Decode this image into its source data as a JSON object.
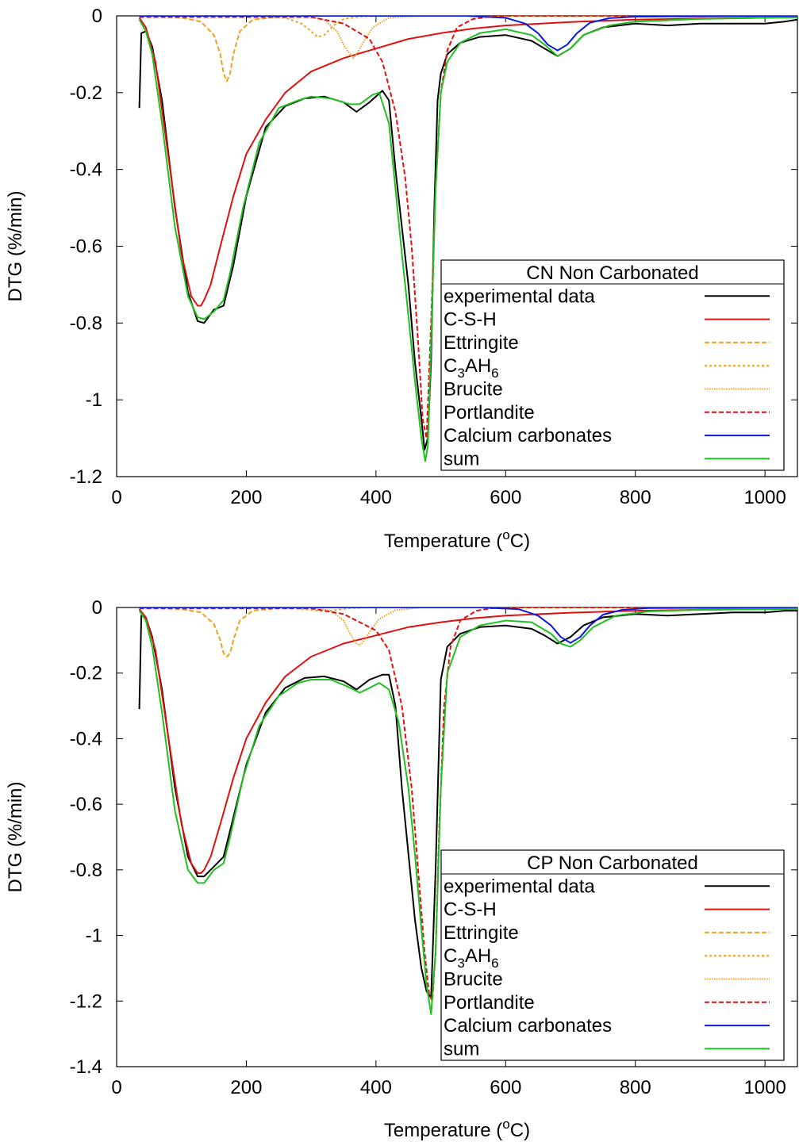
{
  "chart_data": [
    {
      "type": "line",
      "legend_title": "CN Non Carbonated",
      "xlabel": {
        "base": "Temperature (",
        "sup": "o",
        "tail": "C)"
      },
      "ylabel": "DTG (%/min)",
      "xlim": [
        0,
        1050
      ],
      "ylim": [
        -1.2,
        0
      ],
      "x_ticks": [
        0,
        200,
        400,
        600,
        800,
        1000
      ],
      "y_ticks": [
        0,
        -0.2,
        -0.4,
        -0.6,
        -0.8,
        -1,
        -1.2
      ],
      "x_tick_labels": [
        "0",
        "200",
        "400",
        "600",
        "800",
        "1000"
      ],
      "y_tick_labels": [
        "0",
        "-0.2",
        "-0.4",
        "-0.6",
        "-0.8",
        "-1",
        "-1.2"
      ],
      "legend_position": "bottom-right",
      "series": [
        {
          "name": "experimental data",
          "color": "#000000",
          "dash": "solid",
          "x": [
            35,
            38,
            45,
            55,
            70,
            90,
            110,
            125,
            135,
            150,
            165,
            180,
            200,
            230,
            260,
            290,
            320,
            350,
            370,
            390,
            410,
            420,
            430,
            440,
            450,
            460,
            470,
            475,
            480,
            485,
            490,
            495,
            500,
            510,
            530,
            560,
            600,
            640,
            660,
            680,
            700,
            720,
            750,
            800,
            850,
            900,
            950,
            1000,
            1030,
            1050
          ],
          "y": [
            -0.24,
            -0.045,
            -0.04,
            -0.08,
            -0.22,
            -0.5,
            -0.72,
            -0.795,
            -0.8,
            -0.765,
            -0.755,
            -0.65,
            -0.47,
            -0.29,
            -0.235,
            -0.215,
            -0.21,
            -0.225,
            -0.25,
            -0.225,
            -0.195,
            -0.22,
            -0.4,
            -0.55,
            -0.7,
            -0.9,
            -1.05,
            -1.13,
            -1.1,
            -0.9,
            -0.5,
            -0.22,
            -0.15,
            -0.1,
            -0.07,
            -0.055,
            -0.05,
            -0.065,
            -0.085,
            -0.105,
            -0.085,
            -0.05,
            -0.03,
            -0.02,
            -0.025,
            -0.02,
            -0.02,
            -0.02,
            -0.015,
            -0.01
          ]
        },
        {
          "name": "C-S-H",
          "color": "#e01010",
          "dash": "solid",
          "x": [
            35,
            45,
            60,
            80,
            100,
            115,
            125,
            130,
            135,
            145,
            160,
            180,
            200,
            230,
            260,
            300,
            350,
            400,
            450,
            500,
            550,
            600,
            700,
            800,
            900,
            1000,
            1050
          ],
          "y": [
            -0.005,
            -0.03,
            -0.12,
            -0.37,
            -0.62,
            -0.73,
            -0.755,
            -0.755,
            -0.74,
            -0.7,
            -0.6,
            -0.47,
            -0.36,
            -0.27,
            -0.2,
            -0.145,
            -0.11,
            -0.085,
            -0.06,
            -0.045,
            -0.033,
            -0.025,
            -0.016,
            -0.01,
            -0.007,
            -0.005,
            -0.004
          ]
        },
        {
          "name": "Ettringite",
          "color": "#f0a020",
          "dash": "6,3",
          "x": [
            35,
            100,
            130,
            150,
            160,
            165,
            170,
            175,
            180,
            190,
            210,
            250,
            300,
            400,
            1050
          ],
          "y": [
            0,
            -0.005,
            -0.015,
            -0.05,
            -0.1,
            -0.15,
            -0.17,
            -0.15,
            -0.1,
            -0.04,
            -0.01,
            -0.002,
            0,
            0,
            0
          ]
        },
        {
          "name": "C3AH6",
          "name_sub": "3",
          "name_tail": "AH",
          "name_sub2": "6",
          "name_head": "C",
          "color": "#f0a020",
          "dash": "3,3",
          "x": [
            35,
            220,
            260,
            285,
            300,
            310,
            320,
            335,
            350,
            380,
            420,
            1050
          ],
          "y": [
            0,
            0,
            -0.005,
            -0.02,
            -0.04,
            -0.055,
            -0.05,
            -0.025,
            -0.008,
            -0.001,
            0,
            0
          ]
        },
        {
          "name": "Brucite",
          "color": "#f0a020",
          "dash": "1.5,1.5",
          "x": [
            35,
            290,
            320,
            340,
            350,
            360,
            365,
            370,
            380,
            395,
            420,
            460,
            1050
          ],
          "y": [
            0,
            0,
            -0.01,
            -0.04,
            -0.075,
            -0.1,
            -0.11,
            -0.1,
            -0.07,
            -0.03,
            -0.005,
            0,
            0
          ]
        },
        {
          "name": "Portlandite",
          "color": "#e01010",
          "dash": "6,3",
          "x": [
            35,
            300,
            350,
            390,
            410,
            430,
            445,
            455,
            465,
            472,
            478,
            485,
            492,
            500,
            510,
            525,
            550,
            575,
            600,
            700,
            1050
          ],
          "y": [
            -0.003,
            -0.003,
            -0.02,
            -0.06,
            -0.12,
            -0.25,
            -0.42,
            -0.6,
            -0.85,
            -1.05,
            -1.1,
            -0.8,
            -0.45,
            -0.2,
            -0.09,
            -0.03,
            -0.008,
            -0.002,
            0,
            0,
            0
          ]
        },
        {
          "name": "Calcium carbonates",
          "color": "#0a1ae0",
          "dash": "solid",
          "x": [
            35,
            540,
            600,
            630,
            650,
            665,
            680,
            695,
            710,
            730,
            760,
            800,
            1050
          ],
          "y": [
            0,
            0,
            -0.005,
            -0.02,
            -0.045,
            -0.075,
            -0.09,
            -0.075,
            -0.045,
            -0.018,
            -0.006,
            -0.002,
            0
          ]
        },
        {
          "name": "sum",
          "color": "#20c020",
          "dash": "solid",
          "x": [
            35,
            45,
            55,
            70,
            90,
            110,
            125,
            135,
            150,
            165,
            175,
            195,
            220,
            250,
            280,
            300,
            330,
            360,
            375,
            395,
            405,
            420,
            430,
            440,
            450,
            460,
            470,
            476,
            480,
            485,
            492,
            500,
            510,
            530,
            560,
            600,
            640,
            660,
            680,
            700,
            720,
            760,
            800,
            900,
            1000,
            1050
          ],
          "y": [
            -0.01,
            -0.04,
            -0.1,
            -0.28,
            -0.55,
            -0.73,
            -0.785,
            -0.79,
            -0.77,
            -0.74,
            -0.67,
            -0.5,
            -0.33,
            -0.24,
            -0.22,
            -0.21,
            -0.215,
            -0.23,
            -0.23,
            -0.205,
            -0.2,
            -0.28,
            -0.45,
            -0.62,
            -0.78,
            -0.95,
            -1.1,
            -1.16,
            -1.12,
            -0.85,
            -0.45,
            -0.2,
            -0.12,
            -0.07,
            -0.045,
            -0.035,
            -0.05,
            -0.075,
            -0.105,
            -0.085,
            -0.05,
            -0.025,
            -0.015,
            -0.008,
            -0.005,
            -0.004
          ]
        }
      ]
    },
    {
      "type": "line",
      "legend_title": "CP Non Carbonated",
      "xlabel": {
        "base": "Temperature (",
        "sup": "o",
        "tail": "C)"
      },
      "ylabel": "DTG (%/min)",
      "xlim": [
        0,
        1050
      ],
      "ylim": [
        -1.4,
        0
      ],
      "x_ticks": [
        0,
        200,
        400,
        600,
        800,
        1000
      ],
      "y_ticks": [
        0,
        -0.2,
        -0.4,
        -0.6,
        -0.8,
        -1,
        -1.2,
        -1.4
      ],
      "x_tick_labels": [
        "0",
        "200",
        "400",
        "600",
        "800",
        "1000"
      ],
      "y_tick_labels": [
        "0",
        "-0.2",
        "-0.4",
        "-0.6",
        "-0.8",
        "-1",
        "-1.2",
        "-1.4"
      ],
      "legend_position": "bottom-right",
      "series": [
        {
          "name": "experimental data",
          "color": "#000000",
          "dash": "solid",
          "x": [
            35,
            38,
            45,
            55,
            70,
            90,
            110,
            125,
            135,
            150,
            165,
            180,
            200,
            230,
            260,
            290,
            320,
            350,
            370,
            390,
            410,
            420,
            430,
            440,
            450,
            460,
            470,
            478,
            485,
            492,
            500,
            510,
            530,
            560,
            600,
            640,
            660,
            680,
            700,
            720,
            750,
            800,
            850,
            900,
            950,
            1000,
            1030,
            1050
          ],
          "y": [
            -0.31,
            -0.025,
            -0.03,
            -0.09,
            -0.25,
            -0.55,
            -0.76,
            -0.82,
            -0.82,
            -0.79,
            -0.76,
            -0.64,
            -0.48,
            -0.32,
            -0.245,
            -0.215,
            -0.21,
            -0.225,
            -0.25,
            -0.22,
            -0.205,
            -0.205,
            -0.3,
            -0.55,
            -0.75,
            -0.95,
            -1.1,
            -1.17,
            -1.19,
            -0.8,
            -0.22,
            -0.12,
            -0.08,
            -0.06,
            -0.055,
            -0.065,
            -0.085,
            -0.11,
            -0.09,
            -0.055,
            -0.03,
            -0.02,
            -0.025,
            -0.02,
            -0.015,
            -0.015,
            -0.01,
            -0.01
          ]
        },
        {
          "name": "C-S-H",
          "color": "#e01010",
          "dash": "solid",
          "x": [
            35,
            45,
            60,
            80,
            100,
            115,
            125,
            130,
            135,
            145,
            160,
            180,
            200,
            230,
            260,
            300,
            350,
            400,
            450,
            500,
            550,
            600,
            700,
            800,
            900,
            1000,
            1050
          ],
          "y": [
            -0.005,
            -0.03,
            -0.13,
            -0.4,
            -0.66,
            -0.78,
            -0.81,
            -0.81,
            -0.8,
            -0.76,
            -0.66,
            -0.52,
            -0.4,
            -0.29,
            -0.21,
            -0.15,
            -0.11,
            -0.085,
            -0.06,
            -0.045,
            -0.033,
            -0.025,
            -0.016,
            -0.01,
            -0.007,
            -0.005,
            -0.004
          ]
        },
        {
          "name": "Ettringite",
          "color": "#f0a020",
          "dash": "6,3",
          "x": [
            35,
            100,
            130,
            150,
            160,
            165,
            170,
            175,
            180,
            190,
            210,
            250,
            300,
            400,
            1050
          ],
          "y": [
            0,
            -0.005,
            -0.015,
            -0.05,
            -0.1,
            -0.14,
            -0.15,
            -0.14,
            -0.1,
            -0.04,
            -0.01,
            -0.002,
            0,
            0,
            0
          ]
        },
        {
          "name": "C3AH6",
          "name_sub": "3",
          "name_tail": "AH",
          "name_sub2": "6",
          "name_head": "C",
          "color": "#f0a020",
          "dash": "3,3",
          "x": [
            35,
            230,
            270,
            295,
            310,
            320,
            330,
            345,
            360,
            390,
            430,
            1050
          ],
          "y": [
            0,
            0,
            -0.002,
            -0.006,
            -0.01,
            -0.012,
            -0.01,
            -0.006,
            -0.002,
            0,
            0,
            0
          ]
        },
        {
          "name": "Brucite",
          "color": "#f0a020",
          "dash": "1.5,1.5",
          "x": [
            35,
            300,
            330,
            350,
            360,
            370,
            375,
            380,
            390,
            405,
            430,
            470,
            1050
          ],
          "y": [
            0,
            0,
            -0.01,
            -0.04,
            -0.08,
            -0.11,
            -0.115,
            -0.105,
            -0.075,
            -0.035,
            -0.008,
            0,
            0
          ]
        },
        {
          "name": "Portlandite",
          "color": "#e01010",
          "dash": "6,3",
          "x": [
            35,
            300,
            350,
            400,
            420,
            440,
            455,
            465,
            475,
            482,
            487,
            492,
            498,
            505,
            515,
            530,
            555,
            580,
            610,
            700,
            1050
          ],
          "y": [
            -0.003,
            -0.003,
            -0.02,
            -0.07,
            -0.13,
            -0.3,
            -0.55,
            -0.8,
            -1.05,
            -1.18,
            -1.2,
            -1.05,
            -0.65,
            -0.3,
            -0.12,
            -0.04,
            -0.01,
            -0.002,
            0,
            0,
            0
          ]
        },
        {
          "name": "Calcium carbonates",
          "color": "#0a1ae0",
          "dash": "solid",
          "x": [
            35,
            560,
            620,
            650,
            670,
            685,
            700,
            715,
            730,
            750,
            780,
            820,
            1050
          ],
          "y": [
            0,
            0,
            -0.005,
            -0.025,
            -0.055,
            -0.09,
            -0.108,
            -0.09,
            -0.055,
            -0.022,
            -0.007,
            -0.002,
            0
          ]
        },
        {
          "name": "sum",
          "color": "#20c020",
          "dash": "solid",
          "x": [
            35,
            45,
            55,
            70,
            90,
            110,
            125,
            135,
            150,
            165,
            175,
            195,
            220,
            250,
            280,
            300,
            330,
            355,
            375,
            395,
            405,
            420,
            435,
            450,
            460,
            470,
            478,
            485,
            492,
            500,
            510,
            530,
            560,
            600,
            640,
            670,
            685,
            700,
            715,
            735,
            770,
            820,
            900,
            1000,
            1050
          ],
          "y": [
            -0.01,
            -0.04,
            -0.12,
            -0.32,
            -0.62,
            -0.8,
            -0.84,
            -0.84,
            -0.8,
            -0.78,
            -0.7,
            -0.52,
            -0.36,
            -0.27,
            -0.23,
            -0.22,
            -0.22,
            -0.24,
            -0.26,
            -0.24,
            -0.23,
            -0.25,
            -0.35,
            -0.55,
            -0.75,
            -0.98,
            -1.15,
            -1.24,
            -1.05,
            -0.55,
            -0.2,
            -0.09,
            -0.055,
            -0.04,
            -0.045,
            -0.08,
            -0.11,
            -0.12,
            -0.1,
            -0.06,
            -0.025,
            -0.012,
            -0.007,
            -0.005,
            -0.004
          ]
        }
      ]
    }
  ]
}
